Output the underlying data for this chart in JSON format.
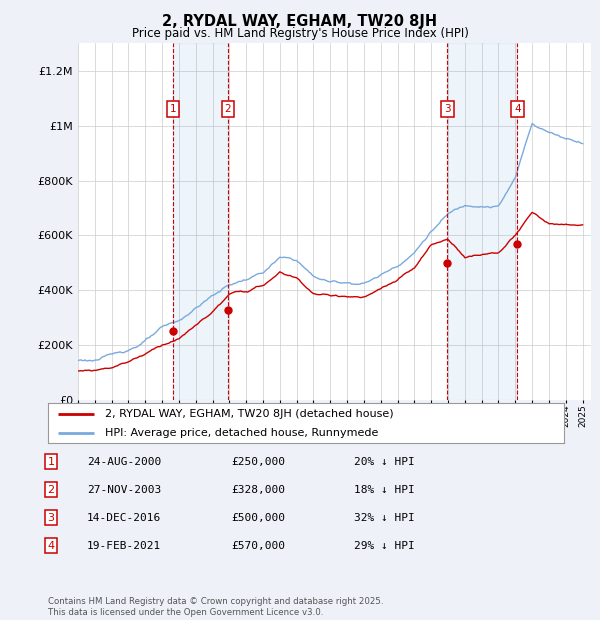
{
  "title": "2, RYDAL WAY, EGHAM, TW20 8JH",
  "subtitle": "Price paid vs. HM Land Registry's House Price Index (HPI)",
  "ylim": [
    0,
    1300000
  ],
  "xlim_start": 1995.0,
  "xlim_end": 2025.5,
  "yticks": [
    0,
    200000,
    400000,
    600000,
    800000,
    1000000,
    1200000
  ],
  "ytick_labels": [
    "£0",
    "£200K",
    "£400K",
    "£600K",
    "£800K",
    "£1M",
    "£1.2M"
  ],
  "background_color": "#eef2f8",
  "plot_bg_color": "#ffffff",
  "grid_color": "#cccccc",
  "red_color": "#cc0000",
  "blue_color": "#7aaadd",
  "transactions": [
    {
      "num": 1,
      "year": 2000.65,
      "price": 250000,
      "date": "24-AUG-2000",
      "hpi_pct": "20% ↓ HPI"
    },
    {
      "num": 2,
      "year": 2003.92,
      "price": 328000,
      "date": "27-NOV-2003",
      "hpi_pct": "18% ↓ HPI"
    },
    {
      "num": 3,
      "year": 2016.96,
      "price": 500000,
      "date": "14-DEC-2016",
      "hpi_pct": "32% ↓ HPI"
    },
    {
      "num": 4,
      "year": 2021.12,
      "price": 570000,
      "date": "19-FEB-2021",
      "hpi_pct": "29% ↓ HPI"
    }
  ],
  "legend_line1": "2, RYDAL WAY, EGHAM, TW20 8JH (detached house)",
  "legend_line2": "HPI: Average price, detached house, Runnymede",
  "footer": "Contains HM Land Registry data © Crown copyright and database right 2025.\nThis data is licensed under the Open Government Licence v3.0."
}
